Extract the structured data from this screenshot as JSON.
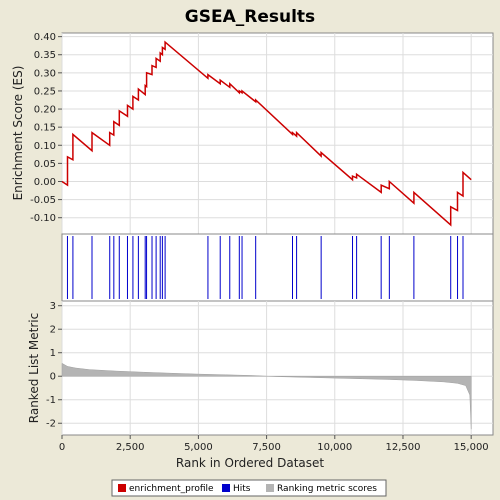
{
  "chart_data": {
    "type": "line",
    "title": "GSEA_Results",
    "xlabel": "Rank in Ordered Dataset",
    "ylabel_top": "Enrichment Score (ES)",
    "ylabel_bottom": "Ranked List Metric",
    "xlim": [
      0,
      15800
    ],
    "es_ylim": [
      -0.145,
      0.41
    ],
    "metric_ylim": [
      -2.5,
      3.2
    ],
    "x_ticks": [
      0,
      2500,
      5000,
      7500,
      10000,
      12500,
      15000
    ],
    "x_tick_labels": [
      "0",
      "2,500",
      "5,000",
      "7,500",
      "10,000",
      "12,500",
      "15,000"
    ],
    "es_ticks": [
      0.4,
      0.35,
      0.3,
      0.25,
      0.2,
      0.15,
      0.1,
      0.05,
      0.0,
      -0.05,
      -0.1
    ],
    "es_tick_labels": [
      "0.40",
      "0.35",
      "0.30",
      "0.25",
      "0.20",
      "0.15",
      "0.10",
      "0.05",
      "0.00",
      "-0.05",
      "-0.10"
    ],
    "metric_ticks": [
      3,
      2,
      1,
      0,
      -1,
      -2
    ],
    "metric_tick_labels": [
      "3",
      "2",
      "1",
      "0",
      "-1",
      "-2"
    ],
    "colors": {
      "enrichment_profile": "#cc0000",
      "hits": "#0000cc",
      "metric": "#b4b4b4",
      "background": "#ece9d8",
      "plot": "#ffffff"
    },
    "hits": [
      200,
      400,
      1100,
      1750,
      1900,
      2100,
      2400,
      2600,
      2800,
      3050,
      3100,
      3300,
      3450,
      3600,
      3680,
      3780,
      5350,
      5800,
      6150,
      6500,
      6600,
      7100,
      8450,
      8600,
      9500,
      10650,
      10800,
      11700,
      12000,
      12900,
      14250,
      14500,
      14700
    ],
    "series": [
      {
        "name": "enrichment_profile",
        "x": [
          0,
          200,
          200,
          400,
          400,
          1100,
          1100,
          1750,
          1750,
          1900,
          1900,
          2100,
          2100,
          2400,
          2400,
          2600,
          2600,
          2800,
          2800,
          3050,
          3050,
          3100,
          3100,
          3300,
          3300,
          3450,
          3450,
          3600,
          3600,
          3680,
          3680,
          3780,
          3780,
          5350,
          5350,
          5800,
          5800,
          6150,
          6150,
          6500,
          6500,
          6600,
          6600,
          7100,
          7100,
          8450,
          8450,
          8600,
          8600,
          9500,
          9500,
          10650,
          10650,
          10800,
          10800,
          11700,
          11700,
          12000,
          12000,
          12900,
          12900,
          14250,
          14250,
          14500,
          14500,
          14700,
          14700,
          15000
        ],
        "y": [
          0.0,
          -0.01,
          0.068,
          0.06,
          0.13,
          0.085,
          0.135,
          0.1,
          0.135,
          0.128,
          0.165,
          0.155,
          0.195,
          0.18,
          0.21,
          0.2,
          0.235,
          0.225,
          0.255,
          0.24,
          0.265,
          0.262,
          0.3,
          0.295,
          0.32,
          0.315,
          0.34,
          0.332,
          0.355,
          0.35,
          0.37,
          0.365,
          0.385,
          0.285,
          0.295,
          0.27,
          0.28,
          0.26,
          0.27,
          0.245,
          0.25,
          0.245,
          0.25,
          0.22,
          0.225,
          0.13,
          0.135,
          0.125,
          0.135,
          0.07,
          0.08,
          0.005,
          0.015,
          0.01,
          0.02,
          -0.03,
          -0.01,
          -0.02,
          0.0,
          -0.06,
          -0.03,
          -0.12,
          -0.07,
          -0.08,
          -0.03,
          -0.04,
          0.025,
          0.005
        ]
      }
    ],
    "metric_profile": {
      "x": [
        0,
        200,
        500,
        1000,
        2000,
        3000,
        4000,
        5000,
        6000,
        7000,
        7500,
        8000,
        9000,
        10000,
        11000,
        12000,
        13000,
        14000,
        14500,
        14800,
        14950,
        15000
      ],
      "y": [
        0.55,
        0.42,
        0.35,
        0.28,
        0.22,
        0.17,
        0.13,
        0.09,
        0.06,
        0.03,
        0.0,
        -0.02,
        -0.05,
        -0.08,
        -0.11,
        -0.14,
        -0.18,
        -0.24,
        -0.3,
        -0.4,
        -0.8,
        -2.25
      ]
    },
    "legend": {
      "position": "bottom",
      "entries": [
        "enrichment_profile",
        "Hits",
        "Ranking metric scores"
      ]
    }
  }
}
